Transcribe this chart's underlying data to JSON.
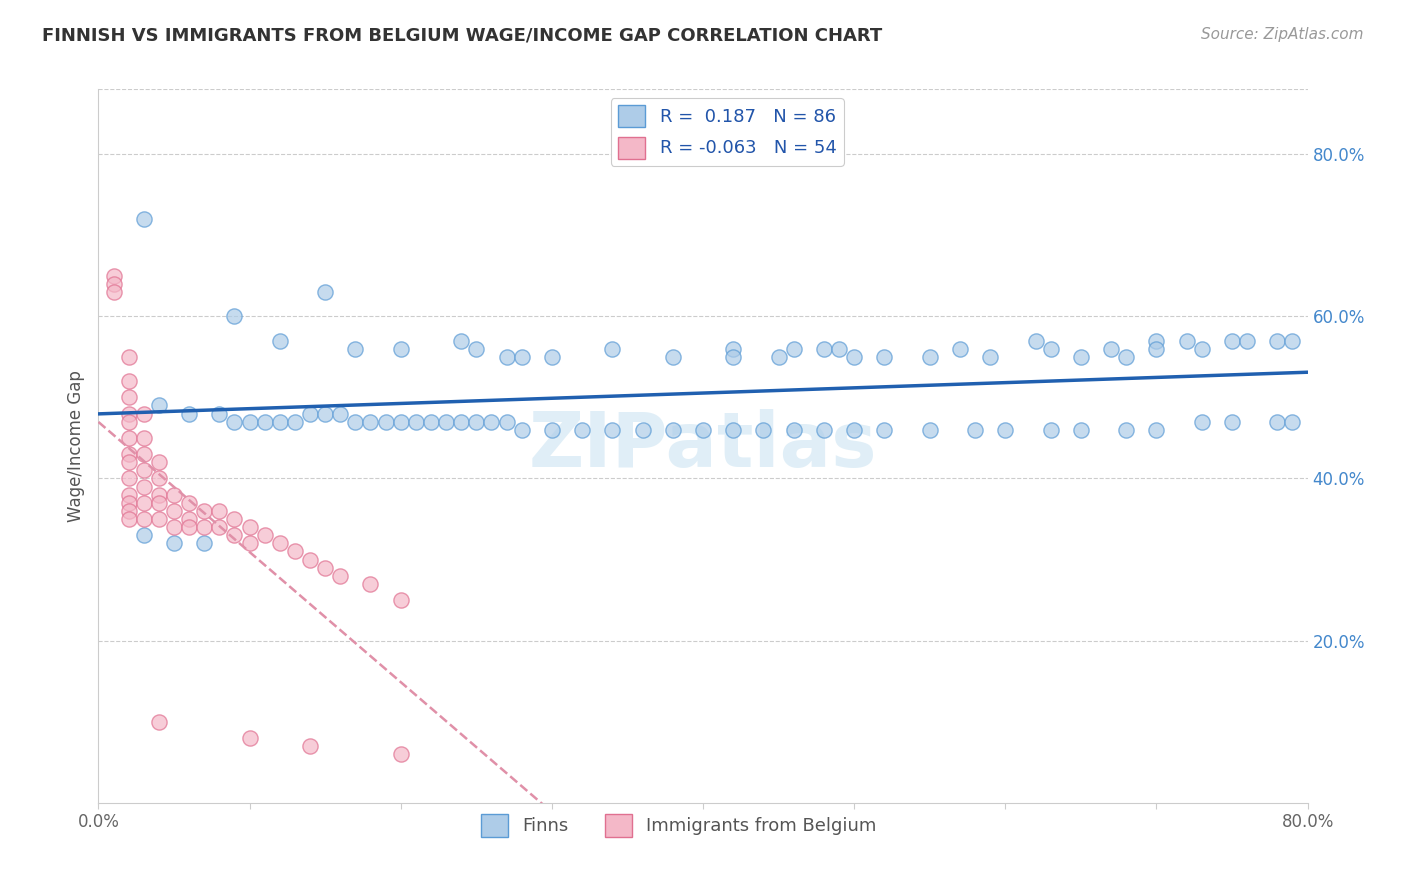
{
  "title": "FINNISH VS IMMIGRANTS FROM BELGIUM WAGE/INCOME GAP CORRELATION CHART",
  "source_text": "Source: ZipAtlas.com",
  "ylabel": "Wage/Income Gap",
  "xmin": 0.0,
  "xmax": 0.8,
  "ymin": 0.0,
  "ymax": 0.88,
  "x_ticks": [
    0.0,
    0.1,
    0.2,
    0.3,
    0.4,
    0.5,
    0.6,
    0.7,
    0.8
  ],
  "x_tick_labels": [
    "0.0%",
    "",
    "",
    "",
    "",
    "",
    "",
    "",
    "80.0%"
  ],
  "y_tick_labels_right": [
    "20.0%",
    "40.0%",
    "60.0%",
    "80.0%"
  ],
  "y_ticks_right": [
    0.2,
    0.4,
    0.6,
    0.8
  ],
  "legend_r_blue": "0.187",
  "legend_n_blue": "86",
  "legend_r_pink": "-0.063",
  "legend_n_pink": "54",
  "blue_color": "#aecce8",
  "pink_color": "#f4b8c8",
  "blue_edge_color": "#5b9bd5",
  "pink_edge_color": "#e07090",
  "blue_line_color": "#2060b0",
  "pink_line_color": "#e090a8",
  "watermark": "ZIPatlas",
  "scatter_blue": [
    [
      0.03,
      0.72
    ],
    [
      0.09,
      0.6
    ],
    [
      0.12,
      0.57
    ],
    [
      0.15,
      0.63
    ],
    [
      0.17,
      0.56
    ],
    [
      0.2,
      0.56
    ],
    [
      0.24,
      0.57
    ],
    [
      0.25,
      0.56
    ],
    [
      0.27,
      0.55
    ],
    [
      0.28,
      0.55
    ],
    [
      0.3,
      0.55
    ],
    [
      0.34,
      0.56
    ],
    [
      0.38,
      0.55
    ],
    [
      0.42,
      0.56
    ],
    [
      0.42,
      0.55
    ],
    [
      0.45,
      0.55
    ],
    [
      0.46,
      0.56
    ],
    [
      0.48,
      0.56
    ],
    [
      0.49,
      0.56
    ],
    [
      0.5,
      0.55
    ],
    [
      0.52,
      0.55
    ],
    [
      0.55,
      0.55
    ],
    [
      0.57,
      0.56
    ],
    [
      0.59,
      0.55
    ],
    [
      0.62,
      0.57
    ],
    [
      0.63,
      0.56
    ],
    [
      0.65,
      0.55
    ],
    [
      0.67,
      0.56
    ],
    [
      0.68,
      0.55
    ],
    [
      0.7,
      0.57
    ],
    [
      0.7,
      0.56
    ],
    [
      0.72,
      0.57
    ],
    [
      0.73,
      0.56
    ],
    [
      0.75,
      0.57
    ],
    [
      0.76,
      0.57
    ],
    [
      0.78,
      0.57
    ],
    [
      0.79,
      0.57
    ],
    [
      0.04,
      0.49
    ],
    [
      0.06,
      0.48
    ],
    [
      0.08,
      0.48
    ],
    [
      0.09,
      0.47
    ],
    [
      0.1,
      0.47
    ],
    [
      0.11,
      0.47
    ],
    [
      0.12,
      0.47
    ],
    [
      0.13,
      0.47
    ],
    [
      0.14,
      0.48
    ],
    [
      0.15,
      0.48
    ],
    [
      0.16,
      0.48
    ],
    [
      0.17,
      0.47
    ],
    [
      0.18,
      0.47
    ],
    [
      0.19,
      0.47
    ],
    [
      0.2,
      0.47
    ],
    [
      0.21,
      0.47
    ],
    [
      0.22,
      0.47
    ],
    [
      0.23,
      0.47
    ],
    [
      0.24,
      0.47
    ],
    [
      0.25,
      0.47
    ],
    [
      0.26,
      0.47
    ],
    [
      0.27,
      0.47
    ],
    [
      0.28,
      0.46
    ],
    [
      0.3,
      0.46
    ],
    [
      0.32,
      0.46
    ],
    [
      0.34,
      0.46
    ],
    [
      0.36,
      0.46
    ],
    [
      0.38,
      0.46
    ],
    [
      0.4,
      0.46
    ],
    [
      0.42,
      0.46
    ],
    [
      0.44,
      0.46
    ],
    [
      0.46,
      0.46
    ],
    [
      0.48,
      0.46
    ],
    [
      0.5,
      0.46
    ],
    [
      0.52,
      0.46
    ],
    [
      0.55,
      0.46
    ],
    [
      0.58,
      0.46
    ],
    [
      0.6,
      0.46
    ],
    [
      0.63,
      0.46
    ],
    [
      0.65,
      0.46
    ],
    [
      0.68,
      0.46
    ],
    [
      0.7,
      0.46
    ],
    [
      0.73,
      0.47
    ],
    [
      0.75,
      0.47
    ],
    [
      0.78,
      0.47
    ],
    [
      0.79,
      0.47
    ],
    [
      0.03,
      0.33
    ],
    [
      0.05,
      0.32
    ],
    [
      0.07,
      0.32
    ]
  ],
  "scatter_pink": [
    [
      0.01,
      0.65
    ],
    [
      0.01,
      0.64
    ],
    [
      0.01,
      0.63
    ],
    [
      0.02,
      0.55
    ],
    [
      0.02,
      0.52
    ],
    [
      0.02,
      0.5
    ],
    [
      0.02,
      0.48
    ],
    [
      0.02,
      0.47
    ],
    [
      0.02,
      0.45
    ],
    [
      0.02,
      0.43
    ],
    [
      0.02,
      0.42
    ],
    [
      0.02,
      0.4
    ],
    [
      0.02,
      0.38
    ],
    [
      0.02,
      0.37
    ],
    [
      0.02,
      0.36
    ],
    [
      0.02,
      0.35
    ],
    [
      0.03,
      0.48
    ],
    [
      0.03,
      0.45
    ],
    [
      0.03,
      0.43
    ],
    [
      0.03,
      0.41
    ],
    [
      0.03,
      0.39
    ],
    [
      0.03,
      0.37
    ],
    [
      0.03,
      0.35
    ],
    [
      0.04,
      0.42
    ],
    [
      0.04,
      0.4
    ],
    [
      0.04,
      0.38
    ],
    [
      0.04,
      0.37
    ],
    [
      0.04,
      0.35
    ],
    [
      0.05,
      0.38
    ],
    [
      0.05,
      0.36
    ],
    [
      0.05,
      0.34
    ],
    [
      0.06,
      0.37
    ],
    [
      0.06,
      0.35
    ],
    [
      0.06,
      0.34
    ],
    [
      0.07,
      0.36
    ],
    [
      0.07,
      0.34
    ],
    [
      0.08,
      0.36
    ],
    [
      0.08,
      0.34
    ],
    [
      0.09,
      0.35
    ],
    [
      0.09,
      0.33
    ],
    [
      0.1,
      0.34
    ],
    [
      0.1,
      0.32
    ],
    [
      0.11,
      0.33
    ],
    [
      0.12,
      0.32
    ],
    [
      0.13,
      0.31
    ],
    [
      0.14,
      0.3
    ],
    [
      0.15,
      0.29
    ],
    [
      0.16,
      0.28
    ],
    [
      0.18,
      0.27
    ],
    [
      0.2,
      0.25
    ],
    [
      0.04,
      0.1
    ],
    [
      0.1,
      0.08
    ],
    [
      0.14,
      0.07
    ],
    [
      0.2,
      0.06
    ]
  ]
}
